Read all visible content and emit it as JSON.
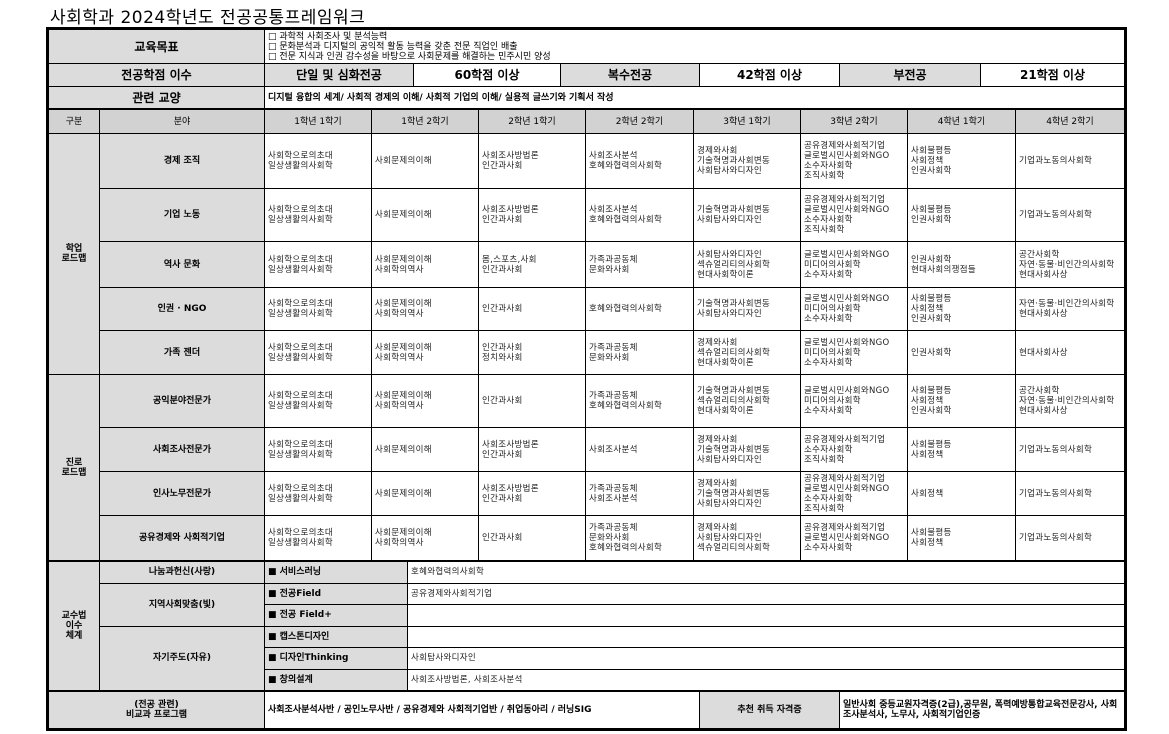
{
  "title": "사회학과 2024학년도 전공공통프레임워크",
  "goals": {
    "label": "교육목표",
    "items": [
      "□ 과학적 사회조사 및 분석능력",
      "□ 문화분석과 디지털의 공익적 활동 능력을 갖춘 전문 직업인 배출",
      "□ 전문 지식과 인권 감수성을 바탕으로 사회문제를 해결하는 민주시민 양성"
    ]
  },
  "credits": {
    "label": "전공학점 이수",
    "items": [
      {
        "label": "단일 및 심화전공",
        "value": "60학점 이상"
      },
      {
        "label": "복수전공",
        "value": "42학점 이상"
      },
      {
        "label": "부전공",
        "value": "21학점 이상"
      }
    ]
  },
  "liberal": {
    "label": "관련 교양",
    "value": "디지털 융합의 세계/ 사회적 경제의 이해/ 사회적 기업의 이해/ 실용적 글쓰기와 기획서 작성"
  },
  "roadmap": {
    "headers": [
      "구분",
      "분야",
      "1학년 1학기",
      "1학년 2학기",
      "2학년 1학기",
      "2학년 2학기",
      "3학년 1학기",
      "3학년 2학기",
      "4학년 1학기",
      "4학년 2학기"
    ],
    "sections": [
      {
        "label": "학업\n로드맵",
        "rows": [
          {
            "field": "경제 조직",
            "cells": [
              "사회학으로의초대\n일상생활의사회학",
              "사회문제의이해",
              "사회조사방법론\n인간과사회",
              "사회조사분석\n호혜와협력의사회학",
              "경제와사회\n기술혁명과사회변동\n사회탐사와디자인",
              "공유경제와사회적기업\n글로벌시민사회와NGO\n소수자사회학\n조직사회학",
              "사회불평등\n사회정책\n인권사회학",
              "기업과노동의사회학"
            ]
          },
          {
            "field": "기업 노동",
            "cells": [
              "사회학으로의초대\n일상생활의사회학",
              "사회문제의이해",
              "사회조사방법론\n인간과사회",
              "사회조사분석\n호혜와협력의사회학",
              "기술혁명과사회변동\n사회탐사와디자인",
              "공유경제와사회적기업\n글로벌시민사회와NGO\n소수자사회학\n조직사회학",
              "사회불평등\n인권사회학",
              "기업과노동의사회학"
            ]
          },
          {
            "field": "역사 문화",
            "cells": [
              "사회학으로의초대\n일상생활의사회학",
              "사회문제의이해\n사회학의역사",
              "몸,스포츠,사회\n인간과사회",
              "가족과공동체\n문화와사회",
              "사회탐사와디자인\n섹슈얼리티의사회학\n현대사회학이론",
              "글로벌시민사회와NGO\n미디어의사회학\n소수자사회학",
              "인권사회학\n현대사회의쟁점들",
              "공간사회학\n자연·동물·비인간의사회학\n현대사회사상"
            ]
          },
          {
            "field": "인권 · NGO",
            "cells": [
              "사회학으로의초대\n일상생활의사회학",
              "사회문제의이해\n사회학의역사",
              "인간과사회",
              "호혜와협력의사회학",
              "기술혁명과사회변동\n사회탐사와디자인",
              "글로벌시민사회와NGO\n미디어의사회학\n소수자사회학",
              "사회불평등\n사회정책\n인권사회학",
              "자연·동물·비인간의사회학\n현대사회사상"
            ]
          },
          {
            "field": "가족 젠더",
            "cells": [
              "사회학으로의초대\n일상생활의사회학",
              "사회문제의이해\n사회학의역사",
              "인간과사회\n정치와사회",
              "가족과공동체\n문화와사회",
              "경제와사회\n섹슈얼리티의사회학\n현대사회학이론",
              "글로벌시민사회와NGO\n미디어의사회학\n소수자사회학",
              "인권사회학",
              "현대사회사상"
            ]
          }
        ]
      },
      {
        "label": "진로\n로드맵",
        "rows": [
          {
            "field": "공익분야전문가",
            "cells": [
              "사회학으로의초대\n일상생활의사회학",
              "사회문제의이해\n사회학의역사",
              "인간과사회",
              "가족과공동체\n호혜와협력의사회학",
              "기술혁명과사회변동\n섹슈얼리티의사회학\n현대사회학이론",
              "글로벌시민사회와NGO\n미디어의사회학\n소수자사회학",
              "사회불평등\n사회정책\n인권사회학",
              "공간사회학\n자연·동물·비인간의사회학\n현대사회사상"
            ]
          },
          {
            "field": "사회조사전문가",
            "cells": [
              "사회학으로의초대\n일상생활의사회학",
              "사회문제의이해",
              "사회조사방법론\n인간과사회",
              "사회조사분석",
              "경제와사회\n기술혁명과사회변동\n사회탐사와디자인",
              "공유경제와사회적기업\n소수자사회학\n조직사회학",
              "사회불평등\n사회정책",
              "기업과노동의사회학"
            ]
          },
          {
            "field": "인사노무전문가",
            "cells": [
              "사회학으로의초대\n일상생활의사회학",
              "사회문제의이해",
              "사회조사방법론\n인간과사회",
              "가족과공동체\n사회조사분석",
              "경제와사회\n기술혁명과사회변동\n사회탐사와디자인",
              "공유경제와사회적기업\n글로벌시민사회와NGO\n소수자사회학\n조직사회학",
              "사회정책",
              "기업과노동의사회학"
            ]
          },
          {
            "field": "공유경제와 사회적기업",
            "cells": [
              "사회학으로의초대\n일상생활의사회학",
              "사회문제의이해\n사회학의역사",
              "인간과사회",
              "가족과공동체\n문화와사회\n호혜와협력의사회학",
              "경제와사회\n사회탐사와디자인\n섹슈얼리티의사회학",
              "공유경제와사회적기업\n글로벌시민사회와NGO\n소수자사회학",
              "사회불평등\n사회정책",
              "기업과노동의사회학"
            ]
          }
        ]
      }
    ]
  },
  "teaching": {
    "label": "교수법\n이수\n체계",
    "groups": [
      {
        "label": "나눔과헌신(사랑)",
        "items": [
          {
            "method": "■ 서비스러닝",
            "courses": "호혜와협력의사회학"
          }
        ]
      },
      {
        "label": "지역사회맞춤(빛)",
        "items": [
          {
            "method": "■ 전공Field",
            "courses": "공유경제와사회적기업"
          },
          {
            "method": "■ 전공 Field+",
            "courses": ""
          }
        ]
      },
      {
        "label": "자기주도(자유)",
        "items": [
          {
            "method": "■ 캡스톤디자인",
            "courses": ""
          },
          {
            "method": "■ 디자인Thinking",
            "courses": "사회탐사와디자인"
          },
          {
            "method": "■ 창의설계",
            "courses": "사회조사방법론, 사회조사분석"
          }
        ]
      }
    ]
  },
  "extra": {
    "label": "(전공 관련)\n비교과 프로그램",
    "value": "사회조사분석사반 / 공인노무사반 / 공유경제와 사회적기업반 / 취업동아리 / 러닝SIG",
    "cert_label": "추천 취득 자격증",
    "cert_value": "일반사회 중등교원자격증(2급),공무원, 폭력예방통합교육전문강사, 사회조사분석사, 노무사, 사회적기업인증"
  },
  "colors": {
    "header_gray": "#dcdcdc",
    "border": "#000000"
  }
}
